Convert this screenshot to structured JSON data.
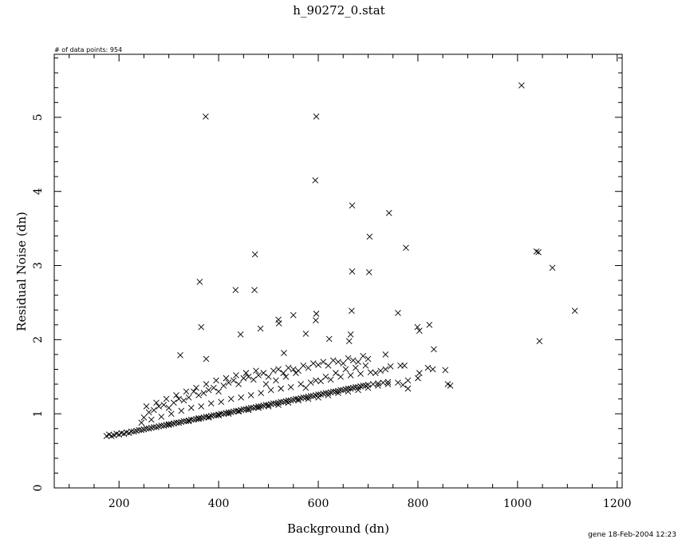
{
  "chart_data": {
    "type": "scatter",
    "title": "h_90272_0.stat",
    "annotation": "# of data points: 954",
    "footer": "gene 18-Feb-2004 12:23",
    "xlabel": "Background (dn)",
    "ylabel": "Residual Noise (dn)",
    "xlim": [
      70,
      1210
    ],
    "ylim": [
      0,
      5.85
    ],
    "xticks": [
      "200",
      "400",
      "600",
      "800",
      "1000",
      "1200"
    ],
    "yticks": [
      "0",
      "1",
      "2",
      "3",
      "4",
      "5"
    ],
    "marker": "x",
    "grid": false,
    "outliers": {
      "x": [
        1008,
        374,
        596,
        594,
        668,
        742,
        703,
        776,
        473,
        668,
        702,
        362,
        434,
        472,
        1038,
        1042,
        1070,
        1115,
        1044,
        667,
        596,
        595,
        365,
        484,
        444,
        550,
        520,
        521,
        531,
        575,
        665,
        662,
        760,
        799,
        803,
        823,
        832,
        765,
        803,
        323,
        375,
        820,
        830,
        855,
        860,
        865,
        770,
        735,
        780,
        745,
        773,
        622
      ],
      "y": [
        5.43,
        5.01,
        5.01,
        4.15,
        3.81,
        3.71,
        3.39,
        3.24,
        3.15,
        2.92,
        2.91,
        2.78,
        2.67,
        2.67,
        3.19,
        3.18,
        2.97,
        2.39,
        1.98,
        2.39,
        2.35,
        2.26,
        2.17,
        2.15,
        2.07,
        2.33,
        2.27,
        2.22,
        1.82,
        2.08,
        2.07,
        1.98,
        2.36,
        2.17,
        2.12,
        2.2,
        1.87,
        1.65,
        1.55,
        1.79,
        1.74,
        1.62,
        1.6,
        1.59,
        1.4,
        1.38,
        1.39,
        1.8,
        1.34,
        1.64,
        1.65,
        2.01
      ]
    },
    "bulk": {
      "x": [
        175,
        180,
        185,
        190,
        195,
        200,
        205,
        210,
        215,
        220,
        225,
        230,
        235,
        240,
        245,
        250,
        255,
        260,
        265,
        270,
        275,
        280,
        285,
        290,
        295,
        300,
        305,
        310,
        315,
        320,
        325,
        330,
        335,
        340,
        345,
        350,
        355,
        360,
        365,
        370,
        375,
        380,
        385,
        390,
        395,
        400,
        405,
        410,
        415,
        420,
        425,
        430,
        435,
        440,
        445,
        450,
        455,
        460,
        465,
        470,
        475,
        480,
        485,
        490,
        495,
        500,
        505,
        510,
        515,
        520,
        525,
        530,
        535,
        540,
        545,
        550,
        555,
        560,
        565,
        570,
        575,
        580,
        585,
        590,
        595,
        600,
        605,
        610,
        615,
        620,
        625,
        630,
        635,
        640,
        645,
        650,
        655,
        660,
        665,
        670,
        675,
        680,
        685,
        690,
        695,
        700,
        710,
        720,
        730,
        740,
        250,
        260,
        270,
        280,
        290,
        300,
        310,
        320,
        330,
        340,
        350,
        360,
        370,
        380,
        390,
        400,
        410,
        420,
        430,
        440,
        450,
        460,
        470,
        480,
        490,
        500,
        510,
        520,
        530,
        540,
        550,
        560,
        570,
        580,
        590,
        600,
        610,
        620,
        630,
        640,
        650,
        660,
        670,
        680,
        690,
        700,
        245,
        265,
        285,
        305,
        325,
        345,
        365,
        385,
        405,
        425,
        445,
        465,
        485,
        505,
        525,
        545,
        565,
        585,
        605,
        625,
        645,
        665,
        685,
        705,
        725,
        255,
        275,
        295,
        315,
        335,
        355,
        375,
        395,
        415,
        435,
        455,
        475,
        495,
        515,
        535,
        555,
        575,
        595,
        615,
        635,
        655,
        675,
        695,
        715,
        735,
        300,
        320,
        340,
        360,
        380,
        400,
        420,
        440,
        460,
        480,
        500,
        520,
        540,
        560,
        580,
        600,
        620,
        640,
        660,
        680,
        700,
        720,
        740,
        760,
        780,
        800
      ],
      "y": [
        0.7,
        0.72,
        0.7,
        0.71,
        0.73,
        0.72,
        0.74,
        0.73,
        0.75,
        0.74,
        0.76,
        0.76,
        0.77,
        0.78,
        0.78,
        0.79,
        0.8,
        0.8,
        0.81,
        0.82,
        0.82,
        0.83,
        0.84,
        0.84,
        0.85,
        0.86,
        0.86,
        0.87,
        0.88,
        0.88,
        0.89,
        0.9,
        0.9,
        0.91,
        0.92,
        0.92,
        0.93,
        0.94,
        0.94,
        0.95,
        0.96,
        0.96,
        0.97,
        0.98,
        0.98,
        0.99,
        1.0,
        1.0,
        1.01,
        1.02,
        1.02,
        1.03,
        1.04,
        1.04,
        1.05,
        1.06,
        1.06,
        1.07,
        1.08,
        1.08,
        1.09,
        1.1,
        1.1,
        1.11,
        1.12,
        1.12,
        1.13,
        1.14,
        1.14,
        1.15,
        1.16,
        1.16,
        1.17,
        1.18,
        1.18,
        1.19,
        1.2,
        1.2,
        1.21,
        1.22,
        1.22,
        1.23,
        1.24,
        1.24,
        1.25,
        1.26,
        1.26,
        1.27,
        1.28,
        1.28,
        1.29,
        1.3,
        1.3,
        1.31,
        1.32,
        1.32,
        1.33,
        1.34,
        1.34,
        1.35,
        1.36,
        1.36,
        1.37,
        1.38,
        1.38,
        1.39,
        1.4,
        1.41,
        1.42,
        1.43,
        0.95,
        1.02,
        1.05,
        1.1,
        1.12,
        1.08,
        1.15,
        1.2,
        1.18,
        1.22,
        1.3,
        1.25,
        1.28,
        1.32,
        1.35,
        1.3,
        1.38,
        1.42,
        1.45,
        1.4,
        1.48,
        1.5,
        1.46,
        1.52,
        1.55,
        1.5,
        1.58,
        1.6,
        1.55,
        1.62,
        1.6,
        1.58,
        1.65,
        1.62,
        1.68,
        1.66,
        1.7,
        1.65,
        1.72,
        1.7,
        1.68,
        1.75,
        1.72,
        1.7,
        1.78,
        1.74,
        0.88,
        0.92,
        0.96,
        1.0,
        1.04,
        1.08,
        1.1,
        1.14,
        1.16,
        1.2,
        1.22,
        1.25,
        1.28,
        1.32,
        1.34,
        1.36,
        1.4,
        1.42,
        1.44,
        1.46,
        1.5,
        1.52,
        1.54,
        1.56,
        1.58,
        1.1,
        1.15,
        1.2,
        1.25,
        1.3,
        1.35,
        1.4,
        1.45,
        1.48,
        1.52,
        1.55,
        1.58,
        1.4,
        1.45,
        1.5,
        1.55,
        1.35,
        1.45,
        1.5,
        1.55,
        1.6,
        1.62,
        1.65,
        1.55,
        1.6,
        0.85,
        0.88,
        0.9,
        0.93,
        0.95,
        0.98,
        1.0,
        1.03,
        1.05,
        1.08,
        1.1,
        1.12,
        1.15,
        1.18,
        1.2,
        1.22,
        1.25,
        1.28,
        1.3,
        1.32,
        1.35,
        1.38,
        1.4,
        1.42,
        1.45,
        1.48
      ]
    }
  }
}
